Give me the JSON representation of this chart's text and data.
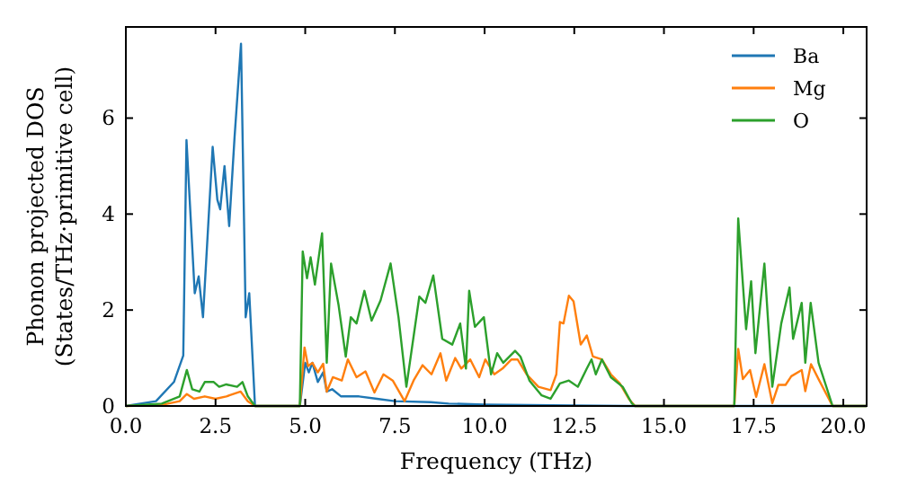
{
  "chart_data": {
    "type": "line",
    "xlabel": "Frequency (THz)",
    "ylabel": "Phonon projected DOS\n(States/THz·primitive cell)",
    "xlim": [
      0,
      20.65
    ],
    "ylim": [
      0,
      7.9
    ],
    "xticks": [
      {
        "value": 0,
        "label": "0.0"
      },
      {
        "value": 2.5,
        "label": "2.5"
      },
      {
        "value": 5,
        "label": "5.0"
      },
      {
        "value": 7.5,
        "label": "7.5"
      },
      {
        "value": 10,
        "label": "10.0"
      },
      {
        "value": 12.5,
        "label": "12.5"
      },
      {
        "value": 15,
        "label": "15.0"
      },
      {
        "value": 17.5,
        "label": "17.5"
      },
      {
        "value": 20,
        "label": "20.0"
      }
    ],
    "yticks": [
      0,
      2,
      4,
      6
    ],
    "grid": false,
    "legend": "top right",
    "marker": "none",
    "line_style": "solid",
    "series": [
      {
        "name": "Ba",
        "color": "#1f77b4",
        "x": [
          0,
          0.84,
          1.34,
          1.6,
          1.69,
          1.92,
          2.03,
          2.15,
          2.42,
          2.55,
          2.63,
          2.75,
          2.88,
          3.03,
          3.21,
          3.34,
          3.44,
          3.6,
          4.85,
          5.0,
          5.1,
          5.2,
          5.35,
          5.5,
          5.6,
          5.75,
          6.0,
          6.5,
          7.0,
          7.5,
          8.5,
          9.0,
          10.0,
          12.5,
          14.0,
          20.65
        ],
        "values": [
          0,
          0.1,
          0.5,
          1.05,
          5.54,
          2.35,
          2.7,
          1.85,
          5.4,
          4.3,
          4.1,
          5.0,
          3.75,
          5.6,
          7.55,
          1.85,
          2.35,
          0,
          0,
          0.9,
          0.7,
          0.9,
          0.5,
          0.7,
          0.3,
          0.35,
          0.2,
          0.2,
          0.15,
          0.1,
          0.08,
          0.05,
          0.03,
          0.01,
          0,
          0
        ]
      },
      {
        "name": "Mg",
        "color": "#ff7f0e",
        "x": [
          0,
          1.0,
          1.5,
          1.7,
          1.9,
          2.2,
          2.5,
          2.8,
          3.2,
          3.4,
          3.6,
          4.85,
          4.98,
          5.08,
          5.2,
          5.35,
          5.5,
          5.6,
          5.77,
          6.02,
          6.19,
          6.43,
          6.68,
          6.93,
          7.18,
          7.44,
          7.77,
          8.02,
          8.27,
          8.52,
          8.77,
          8.93,
          9.18,
          9.35,
          9.6,
          9.85,
          10.02,
          10.27,
          10.5,
          10.75,
          10.92,
          11.17,
          11.5,
          11.84,
          12.0,
          12.1,
          12.2,
          12.35,
          12.48,
          12.68,
          12.85,
          13.02,
          13.27,
          13.52,
          13.77,
          14.02,
          14.19,
          16.96,
          17.07,
          17.2,
          17.4,
          17.57,
          17.8,
          18.02,
          18.19,
          18.39,
          18.55,
          18.84,
          18.94,
          19.1,
          19.31,
          19.7,
          20.65
        ],
        "values": [
          0,
          0.02,
          0.1,
          0.25,
          0.15,
          0.2,
          0.15,
          0.2,
          0.3,
          0.1,
          0,
          0,
          1.22,
          0.83,
          0.9,
          0.7,
          0.88,
          0.3,
          0.6,
          0.53,
          0.97,
          0.6,
          0.72,
          0.28,
          0.66,
          0.53,
          0.1,
          0.53,
          0.85,
          0.66,
          1.1,
          0.53,
          1.0,
          0.78,
          0.97,
          0.6,
          0.97,
          0.66,
          0.78,
          0.97,
          0.97,
          0.66,
          0.4,
          0.33,
          0.66,
          1.75,
          1.72,
          2.3,
          2.18,
          1.28,
          1.47,
          1.03,
          0.97,
          0.66,
          0.47,
          0.15,
          0,
          0,
          1.19,
          0.56,
          0.75,
          0.19,
          0.87,
          0.06,
          0.44,
          0.44,
          0.62,
          0.75,
          0.31,
          0.87,
          0.56,
          0,
          0
        ]
      },
      {
        "name": "O",
        "color": "#2ca02c",
        "x": [
          0,
          1.0,
          1.5,
          1.7,
          1.85,
          2.05,
          2.2,
          2.45,
          2.6,
          2.8,
          3.1,
          3.25,
          3.4,
          3.6,
          4.85,
          4.93,
          5.05,
          5.15,
          5.27,
          5.47,
          5.6,
          5.72,
          5.93,
          6.13,
          6.27,
          6.43,
          6.65,
          6.85,
          7.1,
          7.38,
          7.6,
          7.82,
          8.18,
          8.35,
          8.57,
          8.82,
          9.1,
          9.32,
          9.48,
          9.57,
          9.73,
          9.98,
          10.18,
          10.35,
          10.52,
          10.85,
          11.0,
          11.25,
          11.59,
          11.84,
          12.1,
          12.35,
          12.6,
          12.85,
          12.98,
          13.1,
          13.27,
          13.52,
          13.85,
          14.1,
          14.19,
          16.96,
          17.07,
          17.29,
          17.43,
          17.55,
          17.8,
          18.02,
          18.27,
          18.5,
          18.6,
          18.84,
          18.94,
          19.09,
          19.31,
          19.7,
          20.65
        ],
        "values": [
          0,
          0.05,
          0.2,
          0.75,
          0.35,
          0.3,
          0.5,
          0.5,
          0.4,
          0.45,
          0.4,
          0.5,
          0.2,
          0,
          0,
          3.22,
          2.66,
          3.1,
          2.53,
          3.6,
          0.9,
          2.97,
          2.1,
          1.03,
          1.85,
          1.72,
          2.4,
          1.78,
          2.2,
          2.97,
          1.85,
          0.4,
          2.28,
          2.15,
          2.72,
          1.4,
          1.28,
          1.72,
          0.78,
          2.4,
          1.65,
          1.85,
          0.66,
          1.1,
          0.9,
          1.15,
          1.03,
          0.53,
          0.22,
          0.15,
          0.47,
          0.53,
          0.4,
          0.78,
          0.97,
          0.66,
          0.97,
          0.6,
          0.4,
          0.06,
          0,
          0,
          3.91,
          1.6,
          2.6,
          1.1,
          2.97,
          0.4,
          1.72,
          2.47,
          1.4,
          2.15,
          0.9,
          2.15,
          0.9,
          0,
          0
        ]
      }
    ]
  }
}
